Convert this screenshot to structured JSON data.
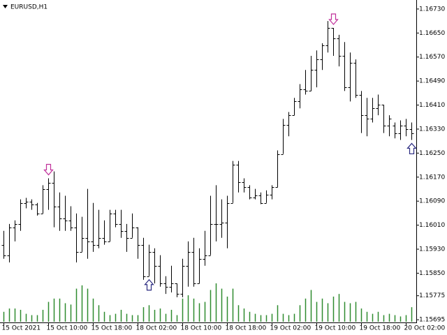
{
  "chart_data": {
    "type": "ohlc",
    "title": "EURUSD,H1",
    "categories": [
      "15 Oct 2021",
      null,
      null,
      null,
      null,
      null,
      null,
      null,
      "15 Oct 10:00",
      null,
      null,
      null,
      null,
      null,
      null,
      null,
      "15 Oct 18:00",
      null,
      null,
      null,
      null,
      null,
      null,
      null,
      "18 Oct 02:00",
      null,
      null,
      null,
      null,
      null,
      null,
      null,
      "18 Oct 10:00",
      null,
      null,
      null,
      null,
      null,
      null,
      null,
      "18 Oct 18:00",
      null,
      null,
      null,
      null,
      null,
      null,
      null,
      "19 Oct 02:00",
      null,
      null,
      null,
      null,
      null,
      null,
      null,
      "19 Oct 10:00",
      null,
      null,
      null,
      null,
      null,
      null,
      null,
      "19 Oct 18:00",
      null,
      null,
      null,
      null,
      null,
      null,
      null,
      "20 Oct 02:00",
      null
    ],
    "open": [
      1.15945,
      1.1591,
      1.16003,
      1.16014,
      1.16084,
      1.16089,
      1.1608,
      1.16049,
      1.16131,
      1.1615,
      1.16073,
      1.16033,
      1.16026,
      1.16003,
      1.15921,
      1.15968,
      1.15956,
      1.15945,
      1.15968,
      1.15956,
      1.16049,
      1.16014,
      1.15991,
      1.15968,
      1.16003,
      1.15945,
      1.1584,
      1.15921,
      1.15875,
      1.15816,
      1.15805,
      1.15816,
      1.15781,
      1.15875,
      1.15921,
      1.15816,
      1.15898,
      1.1591,
      1.16014,
      1.16014,
      1.16019,
      1.16084,
      1.16212,
      1.16154,
      1.16136,
      1.16103,
      1.16108,
      1.16084,
      1.16112,
      1.16136,
      1.16247,
      1.16345,
      1.16376,
      1.16422,
      1.16462,
      1.16457,
      1.16527,
      1.16562,
      1.16609,
      1.16667,
      1.16632,
      1.16574,
      1.16469,
      1.1655,
      1.16445,
      1.16376,
      1.16364,
      1.16399,
      1.16411,
      1.16341,
      1.16341,
      1.16317,
      1.16341,
      1.16329
    ],
    "high": [
      1.15991,
      1.16014,
      1.16026,
      1.16096,
      1.16101,
      1.16096,
      1.16084,
      1.16143,
      1.16166,
      1.16189,
      1.16119,
      1.16108,
      1.16073,
      1.16049,
      1.16038,
      1.16131,
      1.16084,
      1.16061,
      1.16026,
      1.16061,
      1.16061,
      1.16061,
      1.16014,
      1.16049,
      1.16003,
      1.15968,
      1.15945,
      1.15933,
      1.1591,
      1.1584,
      1.15875,
      1.15816,
      1.15898,
      1.15956,
      1.15968,
      1.15933,
      1.15991,
      1.16108,
      1.16143,
      1.16096,
      1.16108,
      1.16224,
      1.16224,
      1.16166,
      1.16143,
      1.16131,
      1.16119,
      1.16126,
      1.16143,
      1.16259,
      1.16364,
      1.16387,
      1.16434,
      1.1648,
      1.16527,
      1.16574,
      1.16592,
      1.16616,
      1.1669,
      1.16667,
      1.16644,
      1.1662,
      1.16585,
      1.16562,
      1.16457,
      1.16434,
      1.16434,
      1.16445,
      1.16411,
      1.16376,
      1.16352,
      1.16359,
      1.16364,
      1.16352
    ],
    "low": [
      1.15898,
      1.15886,
      1.15956,
      1.15991,
      1.16066,
      1.16061,
      1.16042,
      1.16049,
      1.16061,
      1.16003,
      1.15991,
      1.15991,
      1.15991,
      1.15886,
      1.15921,
      1.15898,
      1.15921,
      1.15933,
      1.15945,
      1.15956,
      1.16003,
      1.15968,
      1.15921,
      1.15968,
      1.15898,
      1.15828,
      1.1584,
      1.15816,
      1.15805,
      1.15781,
      1.15786,
      1.1577,
      1.1577,
      1.15805,
      1.15805,
      1.15816,
      1.15875,
      1.1591,
      1.15956,
      1.15968,
      1.15933,
      1.16084,
      1.16119,
      1.16119,
      1.16096,
      1.16096,
      1.1608,
      1.16084,
      1.16096,
      1.16136,
      1.16247,
      1.16306,
      1.16376,
      1.16399,
      1.16445,
      1.16457,
      1.16469,
      1.16527,
      1.16585,
      1.16574,
      1.16539,
      1.16457,
      1.16422,
      1.16434,
      1.16317,
      1.16306,
      1.16352,
      1.16376,
      1.16317,
      1.16306,
      1.16299,
      1.16294,
      1.16306,
      1.16294
    ],
    "close": [
      1.1591,
      1.16003,
      1.16014,
      1.16084,
      1.16089,
      1.1608,
      1.16049,
      1.16131,
      1.1615,
      1.16073,
      1.16033,
      1.16026,
      1.16003,
      1.15921,
      1.15968,
      1.15956,
      1.15945,
      1.15968,
      1.15956,
      1.16049,
      1.16014,
      1.15991,
      1.15968,
      1.16003,
      1.15945,
      1.1584,
      1.15921,
      1.15875,
      1.15816,
      1.15805,
      1.15816,
      1.15781,
      1.15875,
      1.15921,
      1.15816,
      1.15898,
      1.1591,
      1.16014,
      1.16014,
      1.16019,
      1.16084,
      1.16212,
      1.16154,
      1.16136,
      1.16103,
      1.16108,
      1.16084,
      1.16112,
      1.16136,
      1.16247,
      1.16345,
      1.16376,
      1.16422,
      1.16462,
      1.16457,
      1.16527,
      1.16562,
      1.16609,
      1.16667,
      1.16632,
      1.16574,
      1.16469,
      1.1655,
      1.16445,
      1.16376,
      1.16364,
      1.16399,
      1.16411,
      1.16341,
      1.16364,
      1.16317,
      1.16341,
      1.16329,
      1.16317
    ],
    "volume": [
      15,
      20,
      20,
      18,
      12,
      10,
      10,
      18,
      30,
      35,
      35,
      28,
      26,
      50,
      55,
      50,
      35,
      25,
      15,
      10,
      12,
      18,
      12,
      10,
      10,
      22,
      25,
      18,
      20,
      12,
      18,
      10,
      35,
      40,
      35,
      28,
      30,
      48,
      58,
      50,
      38,
      50,
      25,
      20,
      15,
      12,
      10,
      10,
      12,
      25,
      12,
      10,
      12,
      25,
      35,
      48,
      30,
      35,
      28,
      38,
      42,
      30,
      28,
      30,
      20,
      15,
      12,
      15,
      10,
      12,
      10,
      8,
      10,
      22
    ],
    "color": "#000000",
    "volume_color": "#2e8b2e",
    "arrows": [
      {
        "index": 8,
        "direction": "down",
        "color": "#c0309a"
      },
      {
        "index": 26,
        "direction": "up",
        "color": "#2a2a80"
      },
      {
        "index": 59,
        "direction": "down",
        "color": "#c0309a"
      },
      {
        "index": 73,
        "direction": "up",
        "color": "#2a2a80"
      }
    ],
    "ylim": [
      1.15686,
      1.1676
    ],
    "yticks": [
      {
        "value": 1.1673,
        "label": "1.16730"
      },
      {
        "value": 1.1665,
        "label": "1.16650"
      },
      {
        "value": 1.1657,
        "label": "1.16570"
      },
      {
        "value": 1.1649,
        "label": "1.16490"
      },
      {
        "value": 1.1641,
        "label": "1.16410"
      },
      {
        "value": 1.1633,
        "label": "1.16330"
      },
      {
        "value": 1.1625,
        "label": "1.16250"
      },
      {
        "value": 1.1617,
        "label": "1.16170"
      },
      {
        "value": 1.1609,
        "label": "1.16090"
      },
      {
        "value": 1.1601,
        "label": "1.16010"
      },
      {
        "value": 1.1593,
        "label": "1.15930"
      },
      {
        "value": 1.1585,
        "label": "1.15850"
      },
      1.15775,
      1.15695
    ],
    "grid": false
  }
}
